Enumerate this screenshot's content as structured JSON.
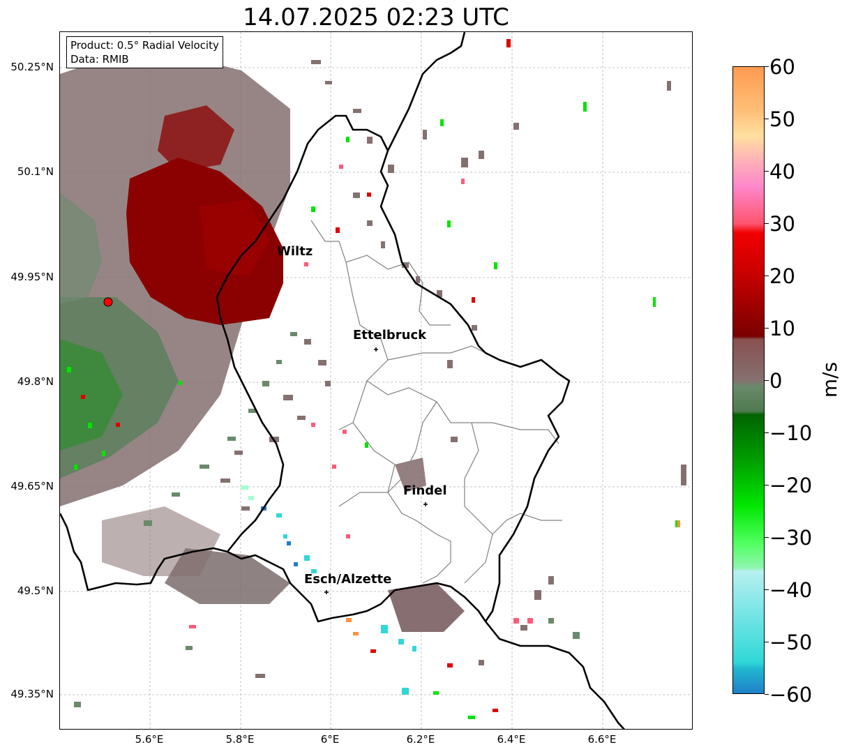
{
  "title": "14.07.2025 02:23 UTC",
  "infobox": {
    "product": "Product: 0.5° Radial Velocity",
    "data": "Data: RMIB"
  },
  "axes": {
    "y_ticks": [
      "50.25°N",
      "50.1°N",
      "49.95°N",
      "49.8°N",
      "49.65°N",
      "49.5°N",
      "49.35°N"
    ],
    "x_ticks": [
      "5.6°E",
      "5.8°E",
      "6°E",
      "6.2°E",
      "6.4°E",
      "6.6°E"
    ]
  },
  "cities": [
    {
      "name": "Wiltz"
    },
    {
      "name": "Ettelbruck"
    },
    {
      "name": "Findel"
    },
    {
      "name": "Esch/Alzette"
    }
  ],
  "colorbar": {
    "label": "m/s",
    "ticks": [
      "60",
      "50",
      "40",
      "30",
      "20",
      "10",
      "0",
      "−10",
      "−20",
      "−30",
      "−40",
      "−50",
      "−60"
    ],
    "range": [
      -60,
      60
    ]
  },
  "colors": {
    "border": "#000000",
    "admin": "#808080",
    "radar_site": "#ff0000",
    "inbound_strong": "#00e600",
    "inbound_weak": "#5a7a5a",
    "near_zero": "#857070",
    "outbound_weak": "#8b0000",
    "outbound_strong": "#e00000"
  }
}
